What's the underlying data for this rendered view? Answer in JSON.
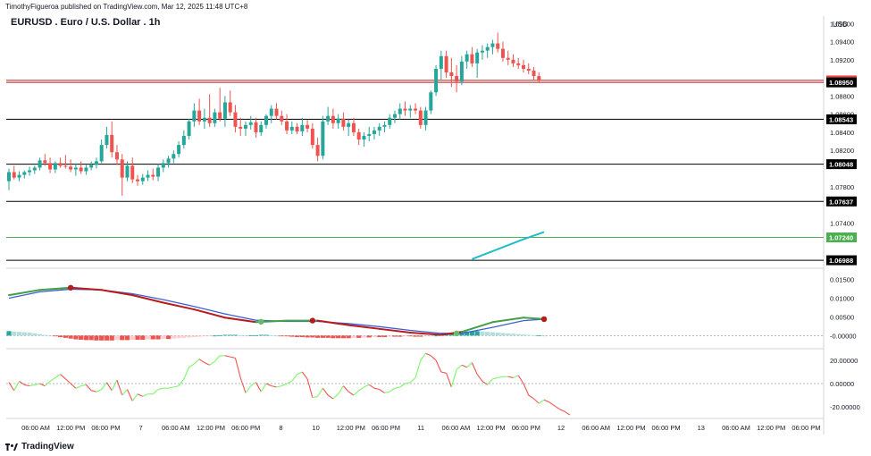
{
  "header": {
    "published": "TimothyFigueroa published on TradingView.com, Mar 12, 2025 11:48 UTC+8",
    "symbol": "EURUSD . Euro / U.S. Dollar . 1h",
    "currency": "USD"
  },
  "footer": {
    "brand": "TradingView",
    "logo_icon": "tradingview-logo-icon"
  },
  "colors": {
    "up": "#26a69a",
    "down": "#ef5350",
    "ema_teal": "#22bcc7",
    "level_green": "#4caf50",
    "macd_green": "#43a047",
    "macd_red": "#b71c1c",
    "signal_blue": "#3f5fd4",
    "osc_green": "#7cf56a",
    "osc_red": "#ef5350"
  },
  "chart_data": [
    {
      "type": "candlestick",
      "panel": "price",
      "title": "EURUSD . Euro / U.S. Dollar . 1h",
      "ylim": [
        1.069,
        1.0978
      ],
      "y_ticks": [
        1.096,
        1.094,
        1.092,
        1.088,
        1.086,
        1.084,
        1.082,
        1.078,
        1.074
      ],
      "y_tick_labels": [
        "1.09600",
        "1.09400",
        "1.09200",
        "1.08800",
        "1.08600",
        "1.08400",
        "1.08200",
        "1.07800",
        "1.07400"
      ],
      "x_tick_labels": [
        "06:00 AM",
        "12:00 PM",
        "06:00 PM",
        "7",
        "06:00 AM",
        "12:00 PM",
        "06:00 PM",
        "8",
        "10",
        "12:00 PM",
        "06:00 PM",
        "11",
        "06:00 AM",
        "12:00 PM",
        "06:00 PM",
        "12",
        "06:00 AM",
        "12:00 PM",
        "06:00 PM",
        "13",
        "06:00 AM",
        "12:00 PM",
        "06:00 PM"
      ],
      "horizontal_levels": [
        {
          "value": 1.08972,
          "label": "1.08972",
          "style": "red-badge",
          "line_color": "#b22222"
        },
        {
          "value": 1.0895,
          "label": "1.08950",
          "style": "black-badge",
          "line_color": "#b22222"
        },
        {
          "value": 1.08543,
          "label": "1.08543",
          "style": "black-badge",
          "line_color": "#000000"
        },
        {
          "value": 1.08048,
          "label": "1.08048",
          "style": "black-badge",
          "line_color": "#000000"
        },
        {
          "value": 1.07637,
          "label": "1.07637",
          "style": "black-badge",
          "line_color": "#000000"
        },
        {
          "value": 1.0724,
          "label": "1.07240",
          "style": "green-badge",
          "line_color": "#4caf50"
        },
        {
          "value": 1.06988,
          "label": "1.06988",
          "style": "black-badge",
          "line_color": "#000000"
        }
      ],
      "ema_line": [
        [
          90,
          1.07
        ],
        [
          100,
          1.0722
        ],
        [
          104,
          1.073
        ]
      ],
      "candles": [
        [
          1.0786,
          1.08,
          1.0776,
          1.0796
        ],
        [
          1.0796,
          1.0803,
          1.0788,
          1.079
        ],
        [
          1.079,
          1.0797,
          1.0786,
          1.0793
        ],
        [
          1.0793,
          1.0798,
          1.0789,
          1.0796
        ],
        [
          1.0796,
          1.0802,
          1.0792,
          1.0798
        ],
        [
          1.0798,
          1.0803,
          1.0794,
          1.0801
        ],
        [
          1.0801,
          1.0812,
          1.0798,
          1.0809
        ],
        [
          1.0809,
          1.0816,
          1.0803,
          1.0806
        ],
        [
          1.0806,
          1.0812,
          1.0795,
          1.0799
        ],
        [
          1.0799,
          1.0808,
          1.0795,
          1.0806
        ],
        [
          1.0806,
          1.0812,
          1.0801,
          1.0803
        ],
        [
          1.0803,
          1.0815,
          1.08,
          1.0802
        ],
        [
          1.0802,
          1.081,
          1.0796,
          1.0799
        ],
        [
          1.0799,
          1.0805,
          1.0792,
          1.0801
        ],
        [
          1.0801,
          1.0808,
          1.0794,
          1.0797
        ],
        [
          1.0797,
          1.0804,
          1.0793,
          1.0801
        ],
        [
          1.0801,
          1.0808,
          1.0798,
          1.0804
        ],
        [
          1.0804,
          1.0812,
          1.08,
          1.0808
        ],
        [
          1.0808,
          1.0832,
          1.0806,
          1.0826
        ],
        [
          1.0826,
          1.0846,
          1.0822,
          1.0837
        ],
        [
          1.0837,
          1.0852,
          1.0812,
          1.0818
        ],
        [
          1.0818,
          1.0826,
          1.0804,
          1.081
        ],
        [
          1.081,
          1.0816,
          1.077,
          1.079
        ],
        [
          1.079,
          1.0808,
          1.0786,
          1.0803
        ],
        [
          1.0803,
          1.0812,
          1.0784,
          1.0788
        ],
        [
          1.0788,
          1.0793,
          1.0781,
          1.0786
        ],
        [
          1.0786,
          1.0794,
          1.0782,
          1.079
        ],
        [
          1.079,
          1.0798,
          1.0786,
          1.0793
        ],
        [
          1.0793,
          1.08,
          1.0787,
          1.0791
        ],
        [
          1.0791,
          1.0805,
          1.0786,
          1.0801
        ],
        [
          1.0801,
          1.081,
          1.0796,
          1.0806
        ],
        [
          1.0806,
          1.0814,
          1.0801,
          1.0811
        ],
        [
          1.0811,
          1.082,
          1.0806,
          1.0816
        ],
        [
          1.0816,
          1.083,
          1.0812,
          1.0826
        ],
        [
          1.0826,
          1.0842,
          1.0822,
          1.0836
        ],
        [
          1.0836,
          1.0855,
          1.0832,
          1.0852
        ],
        [
          1.0852,
          1.0872,
          1.0846,
          1.0864
        ],
        [
          1.0864,
          1.0877,
          1.0848,
          1.0852
        ],
        [
          1.0852,
          1.0866,
          1.0844,
          1.0856
        ],
        [
          1.0856,
          1.0882,
          1.0846,
          1.085
        ],
        [
          1.085,
          1.0866,
          1.0846,
          1.0862
        ],
        [
          1.0862,
          1.0889,
          1.0852,
          1.0855
        ],
        [
          1.0855,
          1.088,
          1.0846,
          1.0873
        ],
        [
          1.0873,
          1.0886,
          1.0858,
          1.0862
        ],
        [
          1.0862,
          1.087,
          1.084,
          1.0846
        ],
        [
          1.0846,
          1.0856,
          1.0836,
          1.0844
        ],
        [
          1.0844,
          1.0852,
          1.0836,
          1.0848
        ],
        [
          1.0848,
          1.0858,
          1.0843,
          1.0851
        ],
        [
          1.0851,
          1.0856,
          1.0834,
          1.084
        ],
        [
          1.084,
          1.0852,
          1.0836,
          1.0848
        ],
        [
          1.0848,
          1.086,
          1.0844,
          1.0858
        ],
        [
          1.0858,
          1.087,
          1.085,
          1.0866
        ],
        [
          1.0866,
          1.0872,
          1.0854,
          1.0858
        ],
        [
          1.0858,
          1.0864,
          1.0848,
          1.0852
        ],
        [
          1.0852,
          1.086,
          1.0838,
          1.0842
        ],
        [
          1.0842,
          1.0852,
          1.0838,
          1.0846
        ],
        [
          1.0846,
          1.085,
          1.0838,
          1.0841
        ],
        [
          1.0841,
          1.0856,
          1.0836,
          1.0848
        ],
        [
          1.0848,
          1.0854,
          1.084,
          1.0844
        ],
        [
          1.0844,
          1.085,
          1.0822,
          1.0826
        ],
        [
          1.0826,
          1.0834,
          1.0808,
          1.0814
        ],
        [
          1.0814,
          1.0858,
          1.081,
          1.0852
        ],
        [
          1.0852,
          1.0868,
          1.0848,
          1.0858
        ],
        [
          1.0858,
          1.0866,
          1.0844,
          1.085
        ],
        [
          1.085,
          1.086,
          1.0844,
          1.0855
        ],
        [
          1.0855,
          1.0862,
          1.0842,
          1.0846
        ],
        [
          1.0846,
          1.0854,
          1.0836,
          1.085
        ],
        [
          1.085,
          1.0856,
          1.0836,
          1.084
        ],
        [
          1.084,
          1.0844,
          1.0826,
          1.0832
        ],
        [
          1.0832,
          1.084,
          1.0824,
          1.0836
        ],
        [
          1.0836,
          1.0846,
          1.083,
          1.0838
        ],
        [
          1.0838,
          1.0846,
          1.0832,
          1.0842
        ],
        [
          1.0842,
          1.085,
          1.0836,
          1.0846
        ],
        [
          1.0846,
          1.0852,
          1.084,
          1.0848
        ],
        [
          1.0848,
          1.086,
          1.0844,
          1.0856
        ],
        [
          1.0856,
          1.0864,
          1.085,
          1.086
        ],
        [
          1.086,
          1.0872,
          1.0854,
          1.0866
        ],
        [
          1.0866,
          1.0874,
          1.0858,
          1.0864
        ],
        [
          1.0864,
          1.087,
          1.0856,
          1.0866
        ],
        [
          1.0866,
          1.0872,
          1.086,
          1.0864
        ],
        [
          1.0864,
          1.0868,
          1.0844,
          1.0848
        ],
        [
          1.0848,
          1.0868,
          1.0842,
          1.0864
        ],
        [
          1.0864,
          1.0886,
          1.086,
          1.0884
        ],
        [
          1.0884,
          1.0914,
          1.088,
          1.091
        ],
        [
          1.091,
          1.093,
          1.0898,
          1.0924
        ],
        [
          1.0924,
          1.093,
          1.09,
          1.0906
        ],
        [
          1.0906,
          1.0922,
          1.089,
          1.0902
        ],
        [
          1.0902,
          1.0914,
          1.0884,
          1.0896
        ],
        [
          1.0896,
          1.0924,
          1.0892,
          1.0918
        ],
        [
          1.0918,
          1.093,
          1.091,
          1.0926
        ],
        [
          1.0926,
          1.0934,
          1.0912,
          1.0916
        ],
        [
          1.0916,
          1.0932,
          1.09,
          1.0928
        ],
        [
          1.0928,
          1.0936,
          1.092,
          1.093
        ],
        [
          1.093,
          1.0938,
          1.0922,
          1.0934
        ],
        [
          1.0934,
          1.0942,
          1.0926,
          1.0938
        ],
        [
          1.0938,
          1.095,
          1.0928,
          1.0932
        ],
        [
          1.0932,
          1.094,
          1.0918,
          1.0922
        ],
        [
          1.0922,
          1.093,
          1.0914,
          1.092
        ],
        [
          1.092,
          1.0926,
          1.0912,
          1.0916
        ],
        [
          1.0916,
          1.0922,
          1.091,
          1.0914
        ],
        [
          1.0914,
          1.092,
          1.0906,
          1.091
        ],
        [
          1.091,
          1.0916,
          1.0904,
          1.0908
        ],
        [
          1.0908,
          1.0912,
          1.0898,
          1.0902
        ],
        [
          1.0902,
          1.0906,
          1.0894,
          1.0897
        ]
      ]
    },
    {
      "type": "line",
      "panel": "macd",
      "ylim": [
        -0.0035,
        0.018
      ],
      "y_ticks": [
        0.015,
        0.01,
        0.005,
        0.0
      ],
      "y_tick_labels": [
        "0.01500",
        "0.01000",
        "0.00500",
        "-0.00000"
      ],
      "macd_points": [
        [
          0,
          0.0108
        ],
        [
          6,
          0.0122
        ],
        [
          12,
          0.0128
        ],
        [
          18,
          0.0122
        ],
        [
          24,
          0.0108
        ],
        [
          30,
          0.0088
        ],
        [
          36,
          0.007
        ],
        [
          42,
          0.0048
        ],
        [
          48,
          0.0036
        ],
        [
          54,
          0.004
        ],
        [
          60,
          0.004
        ],
        [
          66,
          0.0028
        ],
        [
          72,
          0.0018
        ],
        [
          78,
          0.0008
        ],
        [
          84,
          0.0002
        ],
        [
          88,
          0.001
        ],
        [
          94,
          0.0036
        ],
        [
          100,
          0.0048
        ],
        [
          104,
          0.0044
        ]
      ],
      "signal_points": [
        [
          0,
          0.01
        ],
        [
          6,
          0.0117
        ],
        [
          12,
          0.0124
        ],
        [
          18,
          0.0122
        ],
        [
          24,
          0.0112
        ],
        [
          30,
          0.0096
        ],
        [
          36,
          0.0078
        ],
        [
          42,
          0.0058
        ],
        [
          48,
          0.0041
        ],
        [
          54,
          0.0038
        ],
        [
          60,
          0.0038
        ],
        [
          66,
          0.0032
        ],
        [
          72,
          0.0024
        ],
        [
          78,
          0.0014
        ],
        [
          84,
          0.0006
        ],
        [
          88,
          0.0006
        ],
        [
          94,
          0.0022
        ],
        [
          100,
          0.004
        ],
        [
          104,
          0.0044
        ]
      ],
      "macd_segment_colors": [
        "#43a047",
        "#43a047",
        "#b71c1c",
        "#b71c1c",
        "#b71c1c",
        "#b71c1c",
        "#b71c1c",
        "#b71c1c",
        "#43a047",
        "#43a047",
        "#b71c1c",
        "#b71c1c",
        "#b71c1c",
        "#b71c1c",
        "#b71c1c",
        "#43a047",
        "#43a047",
        "#43a047"
      ],
      "crossover_markers": [
        {
          "x": 12,
          "y": 0.0128,
          "kind": "down"
        },
        {
          "x": 49,
          "y": 0.0037,
          "kind": "up"
        },
        {
          "x": 59,
          "y": 0.004,
          "kind": "down"
        },
        {
          "x": 87,
          "y": 0.0006,
          "kind": "up"
        },
        {
          "x": 104,
          "y": 0.0044,
          "kind": "down"
        }
      ],
      "histogram": [
        0.0012,
        0.0011,
        0.001,
        0.0009,
        0.0008,
        0.0006,
        0.0004,
        0.0002,
        0.0,
        -0.0002,
        -0.0004,
        -0.0006,
        -0.0008,
        -0.001,
        -0.0011,
        -0.0012,
        -0.0012,
        -0.0013,
        -0.0013,
        -0.0013,
        -0.0013,
        -0.0012,
        -0.0012,
        -0.0012,
        -0.0011,
        -0.0011,
        -0.0011,
        -0.001,
        -0.001,
        -0.001,
        -0.0009,
        -0.0009,
        -0.0008,
        -0.0007,
        -0.0006,
        -0.0005,
        -0.0004,
        -0.0003,
        -0.0002,
        -0.0001,
        0.0,
        0.0001,
        0.0002,
        0.0002,
        0.0002,
        0.0001,
        0.0,
        0.0001,
        0.0001,
        0.0002,
        0.0002,
        0.0001,
        0.0,
        -0.0001,
        -0.0002,
        -0.0003,
        -0.0004,
        -0.0004,
        -0.0005,
        -0.0005,
        -0.0006,
        -0.0006,
        -0.0006,
        -0.0007,
        -0.0007,
        -0.0007,
        -0.0007,
        -0.0006,
        -0.0006,
        -0.0005,
        -0.0005,
        -0.0004,
        -0.0004,
        -0.0004,
        -0.0003,
        -0.0003,
        -0.0003,
        -0.0002,
        -0.0002,
        -0.0003,
        -0.0003,
        -0.0002,
        -0.0001,
        0.0,
        0.0002,
        0.0004,
        0.0006,
        0.0008,
        0.001,
        0.0011,
        0.0012,
        0.0012,
        0.0011,
        0.001,
        0.0009,
        0.0008,
        0.0007,
        0.0006,
        0.0005,
        0.0004,
        0.0003,
        0.0002,
        0.0001,
        0.0001,
        0.0
      ]
    },
    {
      "type": "line",
      "panel": "oscillator",
      "ylim": [
        -30,
        30
      ],
      "y_ticks": [
        20,
        0,
        -20
      ],
      "y_tick_labels": [
        "20.00000",
        "0.00000",
        "-20.00000"
      ],
      "values": [
        1,
        -6,
        2,
        -1,
        -2,
        -1,
        0,
        -2,
        2,
        5,
        8,
        4,
        0,
        -4,
        -2,
        -1,
        -6,
        -7,
        -5,
        1,
        -6,
        3,
        -10,
        -5,
        -15,
        -9,
        -11,
        -9,
        -9,
        -5,
        -4,
        -4,
        -3,
        -2,
        4,
        14,
        17,
        21,
        18,
        16,
        19,
        24,
        24,
        23,
        22,
        5,
        -8,
        -2,
        1,
        -7,
        0,
        -2,
        -3,
        -2,
        0,
        2,
        8,
        10,
        4,
        -12,
        -11,
        -4,
        -10,
        -13,
        -9,
        -2,
        -7,
        -10,
        -6,
        -3,
        -1,
        -4,
        -5,
        -8,
        -7,
        -4,
        -3,
        0,
        1,
        5,
        20,
        26,
        24,
        20,
        10,
        9,
        -3,
        12,
        16,
        14,
        18,
        8,
        2,
        -1,
        4,
        5,
        6,
        6,
        5,
        7,
        0,
        -10,
        -13,
        -17,
        -14,
        -16,
        -19,
        -22,
        -24,
        -27
      ]
    }
  ]
}
